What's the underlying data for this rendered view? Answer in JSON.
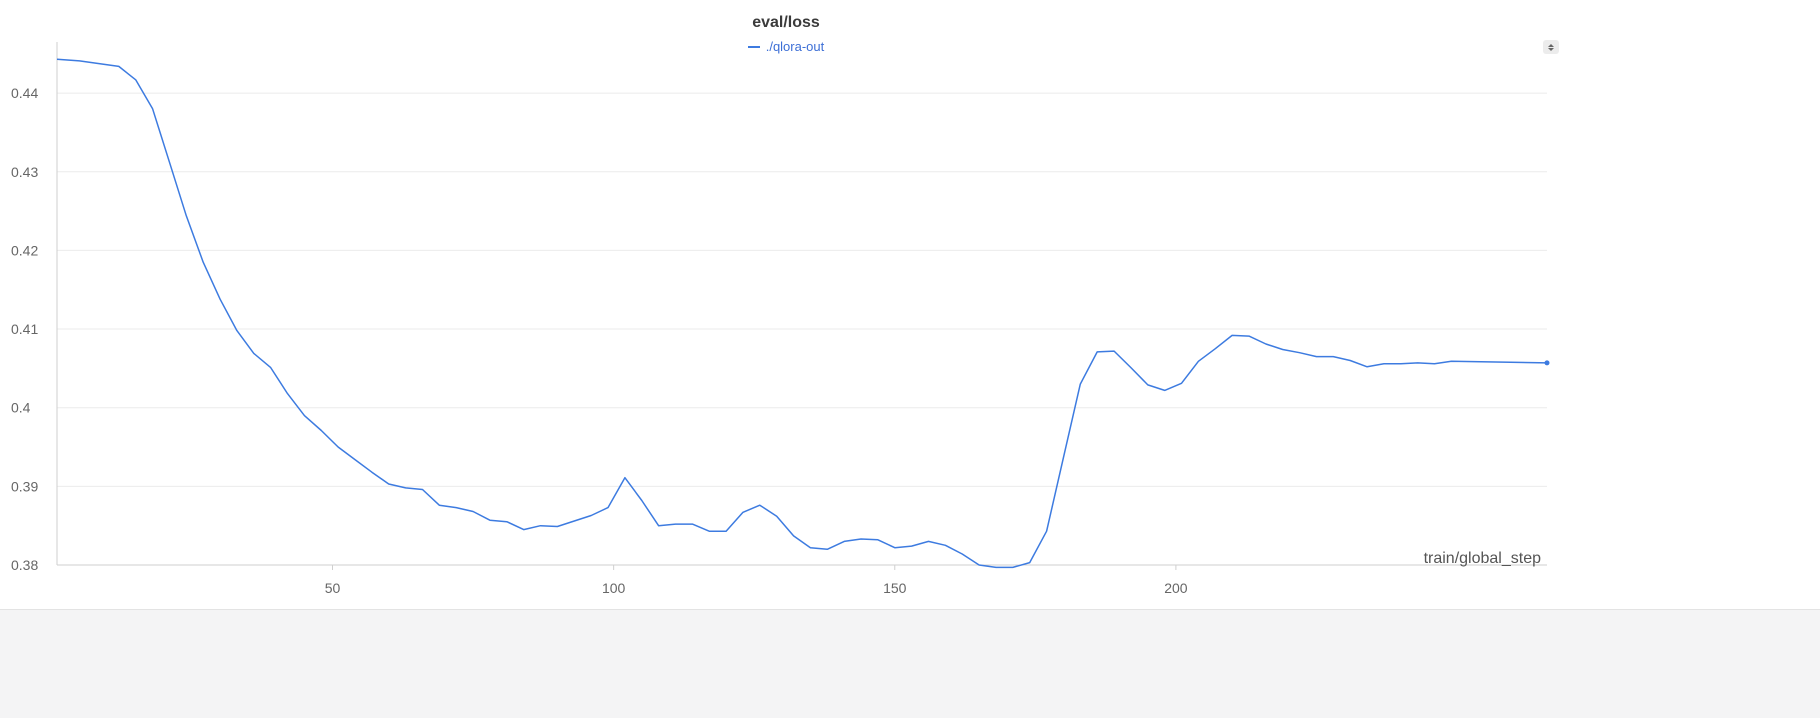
{
  "chart_data": {
    "type": "line",
    "title": "eval/loss",
    "xlabel": "train/global_step",
    "ylabel": "",
    "xlim": [
      1,
      266
    ],
    "ylim": [
      0.38,
      0.4465
    ],
    "xticks": [
      50,
      100,
      150,
      200
    ],
    "yticks": [
      0.38,
      0.39,
      0.4,
      0.41,
      0.42,
      0.43,
      0.44
    ],
    "ytick_labels": [
      "0.38",
      "0.39",
      "0.4",
      "0.41",
      "0.42",
      "0.43",
      "0.44"
    ],
    "grid": true,
    "legend_position": "top-center",
    "series": [
      {
        "name": "./qlora-out",
        "color": "#3d7be0",
        "x": [
          1,
          5,
          8,
          12,
          15,
          18,
          21,
          24,
          27,
          30,
          33,
          36,
          39,
          42,
          45,
          48,
          51,
          54,
          57,
          60,
          63,
          66,
          69,
          72,
          75,
          78,
          81,
          84,
          87,
          90,
          93,
          96,
          99,
          102,
          105,
          108,
          111,
          114,
          117,
          120,
          123,
          126,
          129,
          132,
          135,
          138,
          141,
          144,
          147,
          150,
          153,
          156,
          159,
          162,
          165,
          168,
          171,
          174,
          177,
          180,
          183,
          186,
          189,
          192,
          195,
          198,
          201,
          204,
          207,
          210,
          213,
          216,
          219,
          222,
          225,
          228,
          231,
          234,
          237,
          240,
          243,
          246,
          249,
          266
        ],
        "values": [
          0.4443,
          0.4441,
          0.4438,
          0.4434,
          0.4417,
          0.438,
          0.4312,
          0.4244,
          0.4185,
          0.4138,
          0.4098,
          0.4069,
          0.4051,
          0.4018,
          0.399,
          0.3971,
          0.395,
          0.3934,
          0.3918,
          0.3903,
          0.3898,
          0.3896,
          0.3876,
          0.3873,
          0.3868,
          0.3857,
          0.3855,
          0.3845,
          0.385,
          0.3849,
          0.3856,
          0.3863,
          0.3873,
          0.3911,
          0.3882,
          0.385,
          0.3852,
          0.3852,
          0.3843,
          0.3843,
          0.3867,
          0.3876,
          0.3862,
          0.3837,
          0.3822,
          0.382,
          0.383,
          0.3833,
          0.3832,
          0.3822,
          0.3824,
          0.383,
          0.3825,
          0.3814,
          0.38,
          0.3797,
          0.3797,
          0.3803,
          0.3843,
          0.3937,
          0.403,
          0.4071,
          0.4072,
          0.4051,
          0.4029,
          0.4022,
          0.4031,
          0.4059,
          0.4075,
          0.4092,
          0.4091,
          0.4081,
          0.4074,
          0.407,
          0.4065,
          0.4065,
          0.406,
          0.4052,
          0.4056,
          0.4056,
          0.4057,
          0.4056,
          0.4059,
          0.4057
        ]
      }
    ]
  }
}
